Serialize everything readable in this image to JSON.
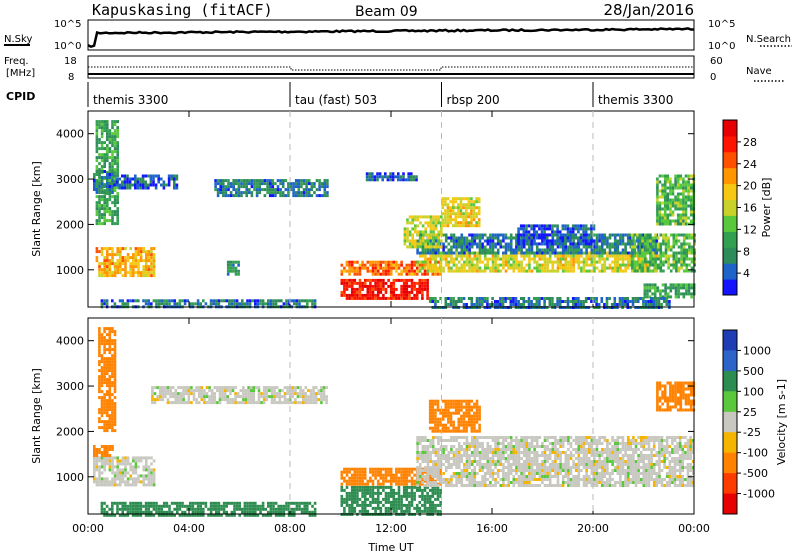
{
  "header": {
    "radar": "Kapuskasing (fitACF)",
    "beam": "Beam 09",
    "date": "28/Jan/2016"
  },
  "noise_panel": {
    "left_label": "N.Sky",
    "left_ticks": [
      "10^5",
      "10^0"
    ],
    "right_label": "N.Search",
    "right_ticks": [
      "10^5",
      "10^0"
    ]
  },
  "freq_panel": {
    "left_label_1": "Freq.",
    "left_label_2": "[MHz]",
    "left_ticks": [
      "18",
      "8"
    ],
    "right_label": "Nave",
    "right_ticks": [
      "60",
      "0"
    ]
  },
  "cpid_panel": {
    "label": "CPID",
    "segments": [
      {
        "start_hour": 0,
        "name": "themis 3300"
      },
      {
        "start_hour": 8,
        "name": "tau (fast) 503"
      },
      {
        "start_hour": 14,
        "name": "rbsp 200"
      },
      {
        "start_hour": 20,
        "name": "themis 3300"
      }
    ]
  },
  "colors": {
    "power_scale": [
      "#1414ff",
      "#1e64c8",
      "#2d8c5a",
      "#32a050",
      "#5ac83c",
      "#c8d228",
      "#f5c814",
      "#ff9600",
      "#ff5000",
      "#ff1400",
      "#e60000"
    ],
    "velocity_scale": [
      "#1e3cb4",
      "#2d64c8",
      "#2d8c50",
      "#5ac83c",
      "#c8c8c0",
      "#f5b400",
      "#ff8200",
      "#ff3c00",
      "#e60000"
    ],
    "ground_scatter": "#c8c8c0"
  },
  "chart_data": [
    {
      "type": "heatmap",
      "panel": "power",
      "xlabel": "",
      "ylabel": "Slant Range [km]",
      "xlim": [
        0,
        24
      ],
      "ylim": [
        180,
        4500
      ],
      "yticks": [
        "1000",
        "2000",
        "3000",
        "4000"
      ],
      "colorbar_label": "Power [dB]",
      "colorbar_ticks": [
        "28",
        "24",
        "20",
        "16",
        "12",
        "8",
        "4"
      ],
      "colorbar_range": [
        0,
        32
      ],
      "regions": [
        {
          "t0": 0.3,
          "t1": 2.6,
          "r0": 880,
          "r1": 1500,
          "value": 20
        },
        {
          "t0": 0.3,
          "t1": 1.2,
          "r0": 2000,
          "r1": 4300,
          "value": 10
        },
        {
          "t0": 0.2,
          "t1": 1.0,
          "r0": 2700,
          "r1": 3200,
          "value": 6
        },
        {
          "t0": 1.0,
          "t1": 3.5,
          "r0": 2800,
          "r1": 3100,
          "value": 4
        },
        {
          "t0": 5.0,
          "t1": 9.5,
          "r0": 2650,
          "r1": 3000,
          "value": 6
        },
        {
          "t0": 0.5,
          "t1": 9.0,
          "r0": 180,
          "r1": 350,
          "value": 6
        },
        {
          "t0": 5.5,
          "t1": 6.0,
          "r0": 900,
          "r1": 1200,
          "value": 8
        },
        {
          "t0": 10.0,
          "t1": 13.5,
          "r0": 400,
          "r1": 800,
          "value": 29
        },
        {
          "t0": 10.0,
          "t1": 14.0,
          "r0": 900,
          "r1": 1200,
          "value": 24
        },
        {
          "t0": 13.0,
          "t1": 22.5,
          "r0": 950,
          "r1": 1400,
          "value": 17
        },
        {
          "t0": 13.0,
          "t1": 22.5,
          "r0": 1400,
          "r1": 1800,
          "value": 6
        },
        {
          "t0": 12.5,
          "t1": 14.0,
          "r0": 1500,
          "r1": 2200,
          "value": 16
        },
        {
          "t0": 11.0,
          "t1": 13.0,
          "r0": 3000,
          "r1": 3150,
          "value": 4
        },
        {
          "t0": 14.0,
          "t1": 15.5,
          "r0": 2000,
          "r1": 2600,
          "value": 18
        },
        {
          "t0": 17.0,
          "t1": 20.0,
          "r0": 1600,
          "r1": 2000,
          "value": 4
        },
        {
          "t0": 21.5,
          "t1": 24.0,
          "r0": 1000,
          "r1": 1800,
          "value": 12
        },
        {
          "t0": 22.5,
          "t1": 24.0,
          "r0": 2000,
          "r1": 3100,
          "value": 12
        },
        {
          "t0": 22.0,
          "t1": 24.0,
          "r0": 400,
          "r1": 700,
          "value": 10
        },
        {
          "t0": 13.5,
          "t1": 23.0,
          "r0": 180,
          "r1": 400,
          "value": 6
        }
      ]
    },
    {
      "type": "heatmap",
      "panel": "velocity",
      "xlabel": "Time UT",
      "ylabel": "Slant Range [km]",
      "xlim": [
        0,
        24
      ],
      "ylim": [
        180,
        4500
      ],
      "xticks": [
        "00:00",
        "04:00",
        "08:00",
        "12:00",
        "16:00",
        "20:00",
        "00:00"
      ],
      "yticks": [
        "1000",
        "2000",
        "3000",
        "4000"
      ],
      "colorbar_label": "Velocity [m s-1]",
      "colorbar_ticks": [
        "1000",
        "500",
        "100",
        "25",
        "-25",
        "-100",
        "-500",
        "-1000"
      ],
      "regions": [
        {
          "t0": 0.2,
          "t1": 2.6,
          "r0": 850,
          "r1": 1450,
          "value": 0
        },
        {
          "t0": 0.2,
          "t1": 1.0,
          "r0": 1500,
          "r1": 1700,
          "value": -200
        },
        {
          "t0": 0.4,
          "t1": 1.1,
          "r0": 2000,
          "r1": 4300,
          "value": -200
        },
        {
          "t0": 2.5,
          "t1": 9.5,
          "r0": 2650,
          "r1": 3000,
          "value": 0
        },
        {
          "t0": 0.5,
          "t1": 9.0,
          "r0": 180,
          "r1": 450,
          "value": 150
        },
        {
          "t0": 10.0,
          "t1": 14.0,
          "r0": 180,
          "r1": 800,
          "value": 150
        },
        {
          "t0": 10.0,
          "t1": 14.0,
          "r0": 850,
          "r1": 1200,
          "value": -150
        },
        {
          "t0": 13.0,
          "t1": 24.0,
          "r0": 800,
          "r1": 1900,
          "value": 0
        },
        {
          "t0": 13.5,
          "t1": 15.5,
          "r0": 2000,
          "r1": 2700,
          "value": -200
        },
        {
          "t0": 22.5,
          "t1": 24.0,
          "r0": 2500,
          "r1": 3100,
          "value": -200
        }
      ]
    }
  ]
}
